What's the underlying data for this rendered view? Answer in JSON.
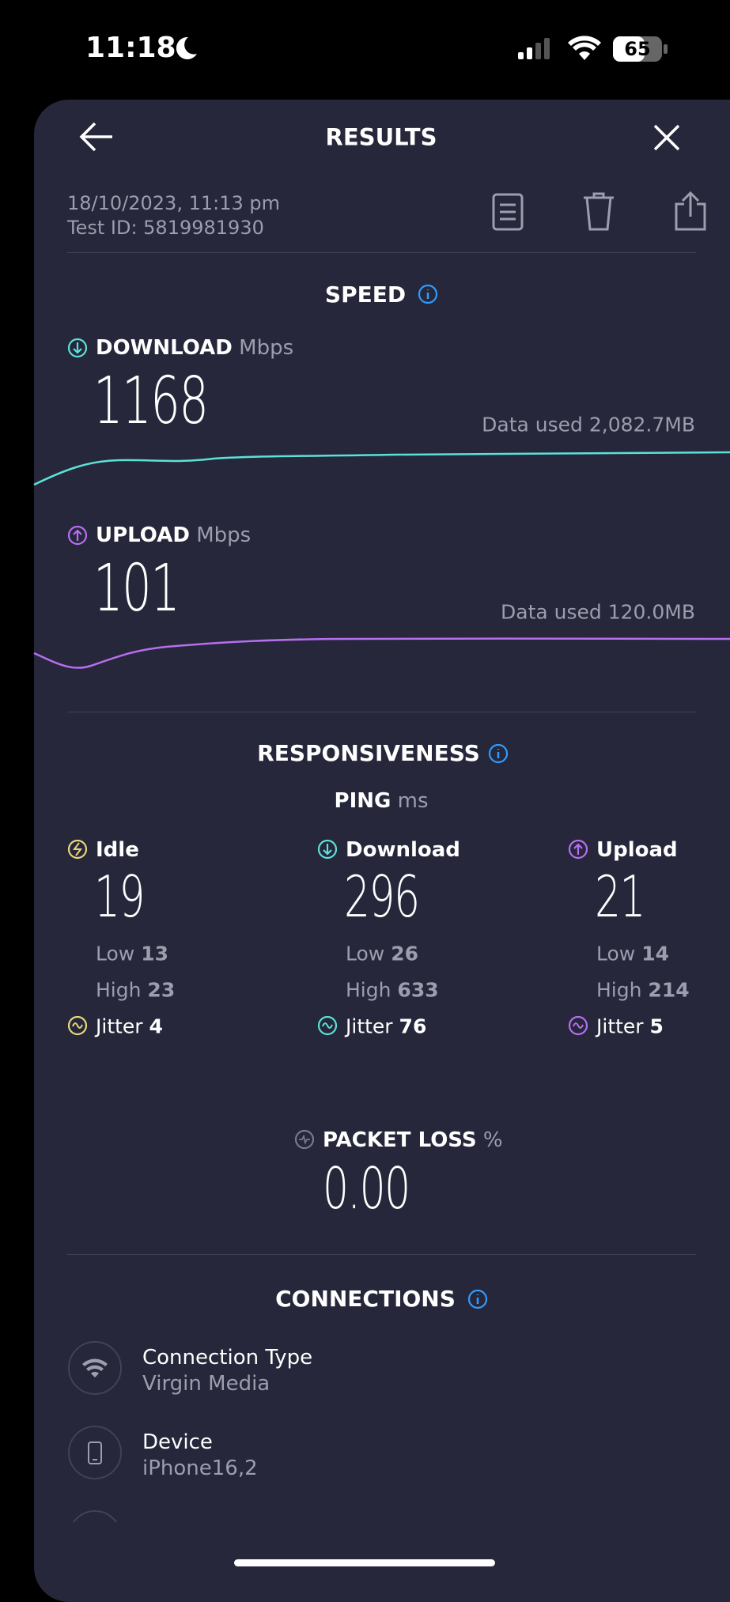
{
  "status_bar": {
    "time": "11:18",
    "battery": "65"
  },
  "header": {
    "title": "RESULTS"
  },
  "meta": {
    "date": "18/10/2023, 11:13 pm",
    "test_id": "Test ID: 5819981930"
  },
  "speed": {
    "title": "SPEED",
    "download": {
      "label": "DOWNLOAD",
      "unit": "Mbps",
      "value": "1168",
      "data_used": "Data used 2,082.7MB"
    },
    "upload": {
      "label": "UPLOAD",
      "unit": "Mbps",
      "value": "101",
      "data_used": "Data used 120.0MB"
    }
  },
  "responsiveness": {
    "title": "RESPONSIVENESS",
    "ping_label": "PING",
    "ping_unit": "ms",
    "columns": [
      {
        "label": "Idle",
        "value": "19",
        "low_label": "Low",
        "low": "13",
        "high_label": "High",
        "high": "23",
        "jitter_label": "Jitter",
        "jitter": "4"
      },
      {
        "label": "Download",
        "value": "296",
        "low_label": "Low",
        "low": "26",
        "high_label": "High",
        "high": "633",
        "jitter_label": "Jitter",
        "jitter": "76"
      },
      {
        "label": "Upload",
        "value": "21",
        "low_label": "Low",
        "low": "14",
        "high_label": "High",
        "high": "214",
        "jitter_label": "Jitter",
        "jitter": "5"
      }
    ]
  },
  "packet_loss": {
    "label": "PACKET LOSS",
    "unit": "%",
    "value": "0.00"
  },
  "connections": {
    "title": "CONNECTIONS",
    "items": [
      {
        "title": "Connection Type",
        "subtitle": "Virgin Media"
      },
      {
        "title": "Device",
        "subtitle": "iPhone16,2"
      }
    ]
  }
}
